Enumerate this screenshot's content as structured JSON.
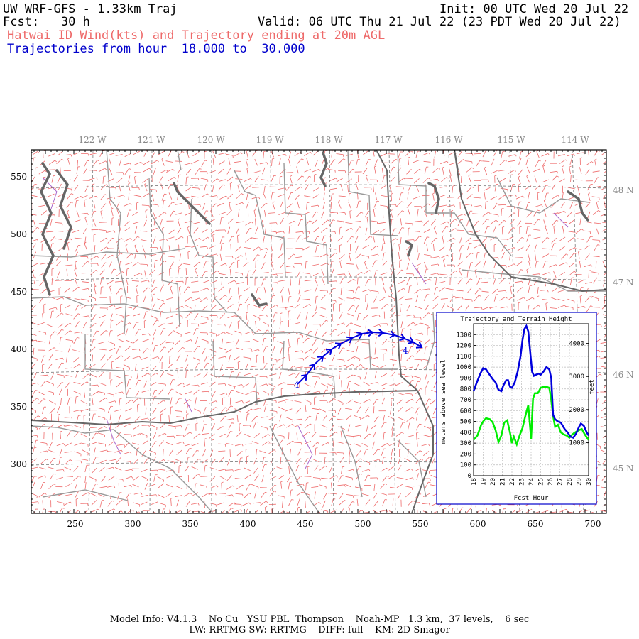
{
  "header": {
    "model_title": "UW WRF-GFS - 1.33km Traj",
    "init": "Init: 00 UTC Wed 20 Jul 22",
    "fcst": "Fcst:   30 h",
    "valid": "Valid: 06 UTC Thu 21 Jul 22 (23 PDT Wed 20 Jul 22)",
    "field": "Hatwai ID Wind(kts) and Trajectory ending at 20m AGL",
    "traj_range": "Trajectories from hour  18.000 to  30.000"
  },
  "colors": {
    "wind_barbs": "#ee6a6a",
    "trajectory": "#0000dd",
    "county_lines": "#999999",
    "state_lines": "#666666",
    "water": "#666666",
    "terrain_line": "#00ee00",
    "traj_height_line": "#0000dd"
  },
  "map": {
    "longitude_labels": [
      "122 W",
      "121 W",
      "120 W",
      "119 W",
      "118 W",
      "117 W",
      "116 W",
      "115 W",
      "114 W"
    ],
    "latitude_labels": [
      "48 N",
      "47 N",
      "46 N",
      "45 N"
    ],
    "x_ticks": [
      "250",
      "300",
      "350",
      "400",
      "450",
      "500",
      "550",
      "600",
      "650",
      "700"
    ],
    "y_ticks": [
      "550",
      "500",
      "450",
      "400",
      "350",
      "300"
    ],
    "traj_start_marker": "4",
    "traj_end_marker": "4"
  },
  "inset": {
    "title": "Trajectory and Terrain Height",
    "x_title": "Fcst Hour",
    "y_left_title": "meters above sea level",
    "y_right_title": "feet",
    "x_ticks": [
      "18",
      "19",
      "20",
      "21",
      "22",
      "23",
      "24",
      "25",
      "26",
      "27",
      "28",
      "29",
      "30"
    ],
    "y_left_ticks": [
      "0",
      "100",
      "200",
      "300",
      "400",
      "500",
      "600",
      "700",
      "800",
      "900",
      "1000",
      "1100",
      "1200",
      "1300"
    ],
    "y_right_ticks": [
      "1000",
      "2000",
      "3000",
      "4000"
    ],
    "trajectory_height_m": [
      [
        18.0,
        780
      ],
      [
        18.3,
        850
      ],
      [
        18.7,
        940
      ],
      [
        19.0,
        990
      ],
      [
        19.3,
        980
      ],
      [
        19.6,
        940
      ],
      [
        20.0,
        890
      ],
      [
        20.3,
        860
      ],
      [
        20.6,
        790
      ],
      [
        20.9,
        780
      ],
      [
        21.1,
        830
      ],
      [
        21.4,
        880
      ],
      [
        21.6,
        880
      ],
      [
        21.8,
        820
      ],
      [
        22.0,
        810
      ],
      [
        22.3,
        860
      ],
      [
        22.6,
        960
      ],
      [
        22.9,
        1100
      ],
      [
        23.1,
        1250
      ],
      [
        23.3,
        1350
      ],
      [
        23.5,
        1380
      ],
      [
        23.7,
        1330
      ],
      [
        23.9,
        1150
      ],
      [
        24.1,
        960
      ],
      [
        24.3,
        920
      ],
      [
        24.5,
        930
      ],
      [
        24.8,
        940
      ],
      [
        25.0,
        930
      ],
      [
        25.3,
        960
      ],
      [
        25.6,
        1000
      ],
      [
        25.9,
        980
      ],
      [
        26.1,
        900
      ],
      [
        26.3,
        560
      ],
      [
        26.5,
        520
      ],
      [
        26.8,
        500
      ],
      [
        27.1,
        490
      ],
      [
        27.3,
        460
      ],
      [
        27.5,
        430
      ],
      [
        27.8,
        400
      ],
      [
        28.1,
        360
      ],
      [
        28.4,
        350
      ],
      [
        28.7,
        390
      ],
      [
        29.0,
        450
      ],
      [
        29.2,
        480
      ],
      [
        29.5,
        460
      ],
      [
        29.8,
        400
      ],
      [
        30.0,
        370
      ]
    ],
    "terrain_height_m": [
      [
        18.0,
        330
      ],
      [
        18.4,
        370
      ],
      [
        18.8,
        470
      ],
      [
        19.0,
        500
      ],
      [
        19.3,
        530
      ],
      [
        19.7,
        520
      ],
      [
        20.0,
        490
      ],
      [
        20.3,
        420
      ],
      [
        20.6,
        310
      ],
      [
        20.9,
        370
      ],
      [
        21.2,
        490
      ],
      [
        21.5,
        510
      ],
      [
        21.8,
        400
      ],
      [
        22.0,
        300
      ],
      [
        22.2,
        360
      ],
      [
        22.5,
        290
      ],
      [
        22.8,
        370
      ],
      [
        23.1,
        440
      ],
      [
        23.4,
        550
      ],
      [
        23.7,
        650
      ],
      [
        24.0,
        340
      ],
      [
        24.2,
        710
      ],
      [
        24.4,
        760
      ],
      [
        24.7,
        760
      ],
      [
        25.0,
        810
      ],
      [
        25.3,
        820
      ],
      [
        25.6,
        820
      ],
      [
        25.9,
        810
      ],
      [
        26.1,
        700
      ],
      [
        26.3,
        550
      ],
      [
        26.5,
        450
      ],
      [
        26.8,
        470
      ],
      [
        27.1,
        400
      ],
      [
        27.4,
        380
      ],
      [
        27.7,
        370
      ],
      [
        28.0,
        350
      ],
      [
        28.3,
        380
      ],
      [
        28.6,
        400
      ],
      [
        29.0,
        420
      ],
      [
        29.3,
        430
      ],
      [
        29.6,
        380
      ],
      [
        30.0,
        330
      ]
    ]
  },
  "footer": {
    "line1": "Model Info: V4.1.3    No Cu   YSU PBL  Thompson    Noah-MP   1.3 km,  37 levels,    6 sec",
    "line2": "LW: RRTMG SW: RRTMG    DIFF: full    KM: 2D Smagor"
  }
}
